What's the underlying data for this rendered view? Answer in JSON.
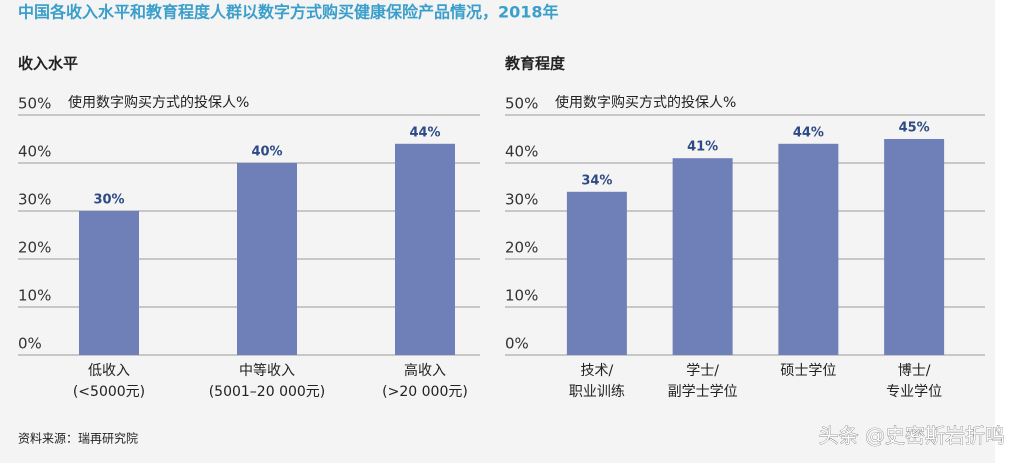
{
  "title": "中国各收入水平和教育程度人群以数字方式购买健康保险产品情况，2018年",
  "chart_data": [
    {
      "type": "bar",
      "title": "收入水平",
      "ylabel": "使用数字购买方式的投保人%",
      "categories": [
        "低收入\n(<5000元)",
        "中等收入\n(5001–20 000元)",
        "高收入\n(>20 000元)"
      ],
      "values": [
        30,
        40,
        44
      ],
      "value_labels": [
        "30%",
        "40%",
        "44%"
      ],
      "color": "#6f80b9",
      "ylim": [
        0,
        50
      ],
      "yticks": [
        {
          "value": 0,
          "label": "0%"
        },
        {
          "value": 10,
          "label": "10%"
        },
        {
          "value": 20,
          "label": "20%"
        },
        {
          "value": 30,
          "label": "30%"
        },
        {
          "value": 40,
          "label": "40%"
        },
        {
          "value": 50,
          "label": "50%"
        }
      ],
      "grid": true
    },
    {
      "type": "bar",
      "title": "教育程度",
      "ylabel": "使用数字购买方式的投保人%",
      "categories": [
        "技术/\n职业训练",
        "学士/\n副学士学位",
        "硕士学位",
        "博士/\n专业学位"
      ],
      "values": [
        34,
        41,
        44,
        45
      ],
      "value_labels": [
        "34%",
        "41%",
        "44%",
        "45%"
      ],
      "color": "#6f80b9",
      "ylim": [
        0,
        50
      ],
      "yticks": [
        {
          "value": 0,
          "label": "0%"
        },
        {
          "value": 10,
          "label": "10%"
        },
        {
          "value": 20,
          "label": "20%"
        },
        {
          "value": 30,
          "label": "30%"
        },
        {
          "value": 40,
          "label": "40%"
        },
        {
          "value": 50,
          "label": "50%"
        }
      ],
      "grid": true
    }
  ],
  "source": "资料来源：瑞再研究院",
  "watermark": "头条 @史密斯岩折鸣"
}
